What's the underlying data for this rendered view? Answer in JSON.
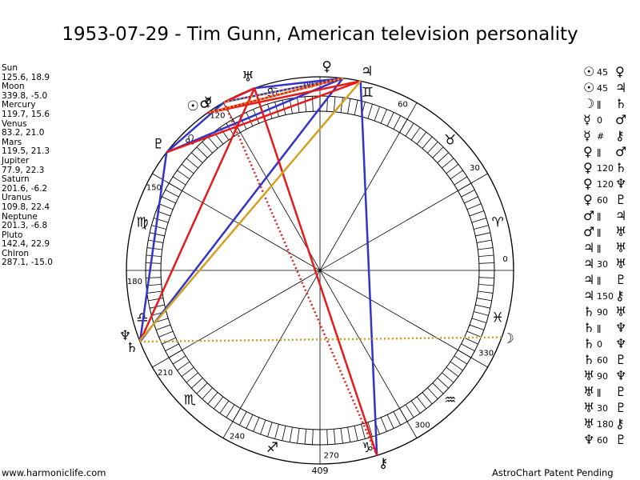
{
  "title": "1953-07-29 - Tim Gunn, American television personality",
  "planets": [
    {
      "name": "Sun",
      "pos": "125.6, 18.9"
    },
    {
      "name": "Moon",
      "pos": "339.8, -5.0"
    },
    {
      "name": "Mercury",
      "pos": "119.7, 15.6"
    },
    {
      "name": "Venus",
      "pos": "83.2, 21.0"
    },
    {
      "name": "Mars",
      "pos": "119.5, 21.3"
    },
    {
      "name": "Jupiter",
      "pos": "77.9, 22.3"
    },
    {
      "name": "Saturn",
      "pos": "201.6, -6.2"
    },
    {
      "name": "Uranus",
      "pos": "109.8, 22.4"
    },
    {
      "name": "Neptune",
      "pos": "201.3, -6.8"
    },
    {
      "name": "Pluto",
      "pos": "142.4, 22.9"
    },
    {
      "name": "Chiron",
      "pos": "287.1, -15.0"
    }
  ],
  "aspects": [
    {
      "p1": "☉",
      "angle": "45",
      "p2": "♀"
    },
    {
      "p1": "☉",
      "angle": "45",
      "p2": "♃"
    },
    {
      "p1": "☽",
      "angle": "ǁ",
      "p2": "♄"
    },
    {
      "p1": "☿",
      "angle": "0",
      "p2": "♂"
    },
    {
      "p1": "☿",
      "angle": "#",
      "p2": "⚷"
    },
    {
      "p1": "♀",
      "angle": "ǁ",
      "p2": "♂"
    },
    {
      "p1": "♀",
      "angle": "120",
      "p2": "♄"
    },
    {
      "p1": "♀",
      "angle": "120",
      "p2": "♆"
    },
    {
      "p1": "♀",
      "angle": "60",
      "p2": "♇"
    },
    {
      "p1": "♂",
      "angle": "ǁ",
      "p2": "♃"
    },
    {
      "p1": "♂",
      "angle": "ǁ",
      "p2": "♅"
    },
    {
      "p1": "♃",
      "angle": "ǁ",
      "p2": "♅"
    },
    {
      "p1": "♃",
      "angle": "30",
      "p2": "♅"
    },
    {
      "p1": "♃",
      "angle": "ǁ",
      "p2": "♇"
    },
    {
      "p1": "♃",
      "angle": "150",
      "p2": "⚷"
    },
    {
      "p1": "♄",
      "angle": "90",
      "p2": "♅"
    },
    {
      "p1": "♄",
      "angle": "ǁ",
      "p2": "♆"
    },
    {
      "p1": "♄",
      "angle": "0",
      "p2": "♆"
    },
    {
      "p1": "♄",
      "angle": "60",
      "p2": "♇"
    },
    {
      "p1": "♅",
      "angle": "90",
      "p2": "♆"
    },
    {
      "p1": "♅",
      "angle": "ǁ",
      "p2": "♇"
    },
    {
      "p1": "♅",
      "angle": "30",
      "p2": "♇"
    },
    {
      "p1": "♅",
      "angle": "180",
      "p2": "⚷"
    },
    {
      "p1": "♆",
      "angle": "60",
      "p2": "♇"
    }
  ],
  "footer_left": "www.harmoniclife.com",
  "footer_right": "AstroChart Patent Pending",
  "center_label": "409",
  "chart_data": {
    "type": "scatter",
    "degree_labels": [
      "0",
      "30",
      "60",
      "90",
      "120",
      "150",
      "180",
      "210",
      "240",
      "270",
      "300",
      "330"
    ],
    "zodiac_signs": [
      "♈",
      "♉",
      "♊",
      "♋",
      "♌",
      "♍",
      "♎",
      "♏",
      "♐",
      "♑",
      "♒",
      "♓"
    ],
    "bodies": [
      {
        "name": "Sun",
        "glyph": "☉",
        "lon": 125.6,
        "decl": 18.9
      },
      {
        "name": "Moon",
        "glyph": "☽",
        "lon": 339.8,
        "decl": -5.0
      },
      {
        "name": "Mercury",
        "glyph": "☿",
        "lon": 119.7,
        "decl": 15.6
      },
      {
        "name": "Venus",
        "glyph": "♀",
        "lon": 83.2,
        "decl": 21.0
      },
      {
        "name": "Mars",
        "glyph": "♂",
        "lon": 119.5,
        "decl": 21.3
      },
      {
        "name": "Jupiter",
        "glyph": "♃",
        "lon": 77.9,
        "decl": 22.3
      },
      {
        "name": "Saturn",
        "glyph": "♄",
        "lon": 201.6,
        "decl": -6.2
      },
      {
        "name": "Uranus",
        "glyph": "♅",
        "lon": 109.8,
        "decl": 22.4
      },
      {
        "name": "Neptune",
        "glyph": "♆",
        "lon": 201.3,
        "decl": -6.8
      },
      {
        "name": "Pluto",
        "glyph": "♇",
        "lon": 142.4,
        "decl": 22.9
      },
      {
        "name": "Chiron",
        "glyph": "⚷",
        "lon": 287.1,
        "decl": -15.0
      }
    ],
    "aspect_lines": [
      {
        "from": "Venus",
        "to": "Saturn",
        "color": "#3333cc",
        "style": "solid"
      },
      {
        "from": "Venus",
        "to": "Pluto",
        "color": "#3333cc",
        "style": "solid"
      },
      {
        "from": "Venus",
        "to": "Uranus",
        "color": "#3333cc",
        "style": "solid"
      },
      {
        "from": "Venus",
        "to": "Mars",
        "color": "#3333cc",
        "style": "solid"
      },
      {
        "from": "Jupiter",
        "to": "Chiron",
        "color": "#3333cc",
        "style": "solid"
      },
      {
        "from": "Saturn",
        "to": "Pluto",
        "color": "#3333cc",
        "style": "solid"
      },
      {
        "from": "Mercury",
        "to": "Pluto",
        "color": "#3333cc",
        "style": "solid"
      },
      {
        "from": "Uranus",
        "to": "Mercury",
        "color": "#3333cc",
        "style": "solid"
      },
      {
        "from": "Sun",
        "to": "Jupiter",
        "color": "#e61a1a",
        "style": "solid"
      },
      {
        "from": "Sun",
        "to": "Venus",
        "color": "#e61a1a",
        "style": "solid"
      },
      {
        "from": "Uranus",
        "to": "Saturn",
        "color": "#e61a1a",
        "style": "solid"
      },
      {
        "from": "Uranus",
        "to": "Chiron",
        "color": "#e61a1a",
        "style": "solid"
      },
      {
        "from": "Mercury",
        "to": "Chiron",
        "color": "#e61a1a",
        "style": "dotted"
      },
      {
        "from": "Jupiter",
        "to": "Pluto",
        "color": "#e61a1a",
        "style": "solid"
      },
      {
        "from": "Uranus",
        "to": "Mars",
        "color": "#e61a1a",
        "style": "solid"
      },
      {
        "from": "Jupiter",
        "to": "Neptune",
        "color": "#d4a020",
        "style": "solid"
      },
      {
        "from": "Venus",
        "to": "Mercury",
        "color": "#d4a020",
        "style": "dotted"
      },
      {
        "from": "Saturn",
        "to": "Moon",
        "color": "#d4a020",
        "style": "dotted"
      },
      {
        "from": "Venus",
        "to": "Sun",
        "color": "#d4a020",
        "style": "dotted"
      }
    ]
  }
}
